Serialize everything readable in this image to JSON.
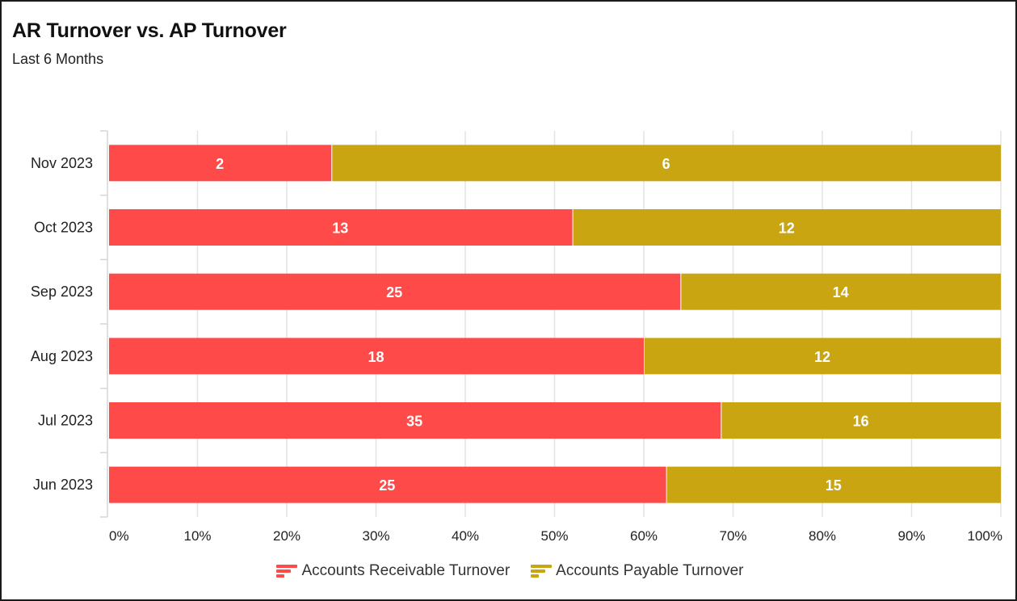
{
  "title": "AR Turnover vs. AP Turnover",
  "subtitle": "Last 6 Months",
  "chart_data": {
    "type": "bar",
    "orientation": "horizontal",
    "stacking": "percent",
    "title": "AR Turnover vs. AP Turnover",
    "subtitle": "Last 6 Months",
    "categories": [
      "Nov 2023",
      "Oct 2023",
      "Sep 2023",
      "Aug 2023",
      "Jul 2023",
      "Jun 2023"
    ],
    "series": [
      {
        "name": "Accounts Receivable Turnover",
        "color": "#ff4a4a",
        "values": [
          2,
          13,
          25,
          18,
          35,
          25
        ]
      },
      {
        "name": "Accounts Payable Turnover",
        "color": "#c9a511",
        "values": [
          6,
          12,
          14,
          12,
          16,
          15
        ]
      }
    ],
    "xtick_labels": [
      "0%",
      "10%",
      "20%",
      "30%",
      "40%",
      "50%",
      "60%",
      "70%",
      "80%",
      "90%",
      "100%"
    ],
    "xlim": [
      0,
      100
    ],
    "grid": true,
    "data_labels": true,
    "legend_position": "bottom"
  }
}
